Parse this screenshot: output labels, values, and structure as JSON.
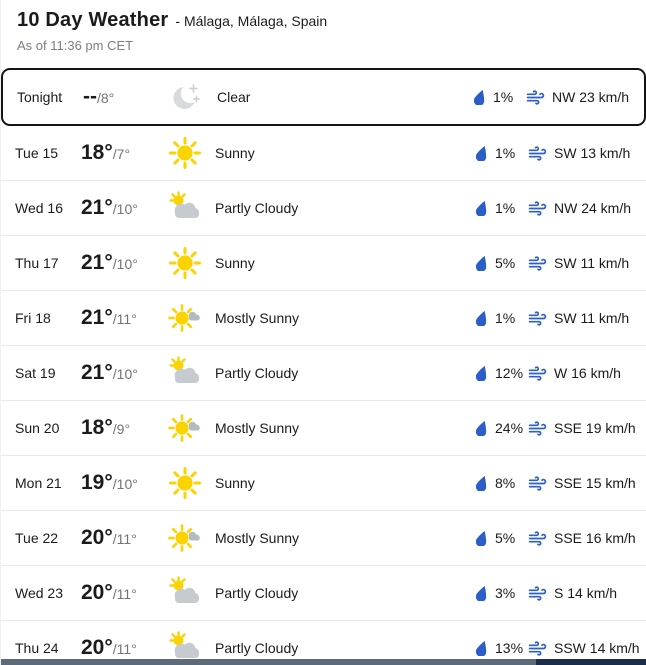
{
  "header": {
    "title": "10 Day Weather",
    "location": "- Málaga, Málaga, Spain",
    "as_of": "As of 11:36 pm CET"
  },
  "colors": {
    "accent_blue": "#2b5fc7",
    "sun_yellow": "#FBD301",
    "cloud_gray": "#c6cbcf",
    "small_cloud_gray": "#b3bac0",
    "moon_gray": "#d8dadc",
    "text_dark": "#1b1b1b",
    "text_gray": "#737373",
    "divider": "#e7e9eb",
    "selected_border": "#141414",
    "scrollbar_track": "#1b2c4a",
    "scrollbar_thumb": "#5c6b7a"
  },
  "icons": {
    "precip": "droplet",
    "wind": "wind-lines",
    "clear-night": "crescent-moon-with-sparkles",
    "sunny": "sun",
    "partly-cloudy": "cloud-with-sun-peek",
    "mostly-sunny": "sun-with-small-cloud"
  },
  "days": [
    {
      "label": "Tonight",
      "temp_high": "--",
      "temp_low": "/8°",
      "icon": "clear-night",
      "condition": "Clear",
      "precip": "1%",
      "wind": "NW 23 km/h",
      "selected": true
    },
    {
      "label": "Tue 15",
      "temp_high": "18°",
      "temp_low": "/7°",
      "icon": "sunny",
      "condition": "Sunny",
      "precip": "1%",
      "wind": "SW 13 km/h",
      "selected": false
    },
    {
      "label": "Wed 16",
      "temp_high": "21°",
      "temp_low": "/10°",
      "icon": "partly-cloudy",
      "condition": "Partly Cloudy",
      "precip": "1%",
      "wind": "NW 24 km/h",
      "selected": false
    },
    {
      "label": "Thu 17",
      "temp_high": "21°",
      "temp_low": "/10°",
      "icon": "sunny",
      "condition": "Sunny",
      "precip": "5%",
      "wind": "SW 11 km/h",
      "selected": false
    },
    {
      "label": "Fri 18",
      "temp_high": "21°",
      "temp_low": "/11°",
      "icon": "mostly-sunny",
      "condition": "Mostly Sunny",
      "precip": "1%",
      "wind": "SW 11 km/h",
      "selected": false
    },
    {
      "label": "Sat 19",
      "temp_high": "21°",
      "temp_low": "/10°",
      "icon": "partly-cloudy",
      "condition": "Partly Cloudy",
      "precip": "12%",
      "wind": "W 16 km/h",
      "selected": false
    },
    {
      "label": "Sun 20",
      "temp_high": "18°",
      "temp_low": "/9°",
      "icon": "mostly-sunny",
      "condition": "Mostly Sunny",
      "precip": "24%",
      "wind": "SSE 19 km/h",
      "selected": false
    },
    {
      "label": "Mon 21",
      "temp_high": "19°",
      "temp_low": "/10°",
      "icon": "sunny",
      "condition": "Sunny",
      "precip": "8%",
      "wind": "SSE 15 km/h",
      "selected": false
    },
    {
      "label": "Tue 22",
      "temp_high": "20°",
      "temp_low": "/11°",
      "icon": "mostly-sunny",
      "condition": "Mostly Sunny",
      "precip": "5%",
      "wind": "SSE 16 km/h",
      "selected": false
    },
    {
      "label": "Wed 23",
      "temp_high": "20°",
      "temp_low": "/11°",
      "icon": "partly-cloudy",
      "condition": "Partly Cloudy",
      "precip": "3%",
      "wind": "S 14 km/h",
      "selected": false
    },
    {
      "label": "Thu 24",
      "temp_high": "20°",
      "temp_low": "/11°",
      "icon": "partly-cloudy",
      "condition": "Partly Cloudy",
      "precip": "13%",
      "wind": "SSW 14 km/h",
      "selected": false
    }
  ]
}
